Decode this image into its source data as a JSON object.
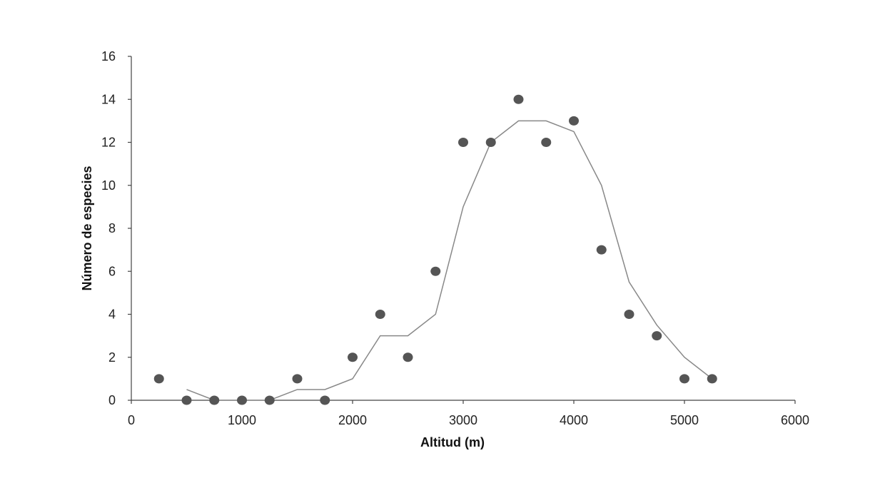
{
  "chart_data": {
    "type": "scatter",
    "title": "",
    "xlabel": "Altitud (m)",
    "ylabel": "Número de especies",
    "xlim": [
      0,
      6000
    ],
    "ylim": [
      0,
      16
    ],
    "xticks": [
      0,
      1000,
      2000,
      3000,
      4000,
      5000,
      6000
    ],
    "yticks": [
      0,
      2,
      4,
      6,
      8,
      10,
      12,
      14,
      16
    ],
    "grid": false,
    "legend": "none",
    "series": [
      {
        "kind": "points",
        "color": "#555555",
        "x": [
          250,
          500,
          750,
          1000,
          1250,
          1500,
          1750,
          2000,
          2250,
          2500,
          2750,
          3000,
          3250,
          3500,
          3750,
          4000,
          4250,
          4500,
          4750,
          5000,
          5250
        ],
        "y": [
          1,
          0,
          0,
          0,
          0,
          1,
          0,
          2,
          4,
          2,
          6,
          12,
          12,
          14,
          12,
          13,
          7,
          4,
          3,
          1,
          1
        ]
      },
      {
        "kind": "line",
        "color": "#888888",
        "x": [
          500,
          750,
          1000,
          1250,
          1500,
          1750,
          2000,
          2250,
          2500,
          2750,
          3000,
          3250,
          3500,
          3750,
          4000,
          4250,
          4500,
          4750,
          5000,
          5250
        ],
        "y": [
          0.5,
          0,
          0,
          0,
          0.5,
          0.5,
          1,
          3,
          3,
          4,
          9,
          12,
          13,
          13,
          12.5,
          10,
          5.5,
          3.5,
          2,
          1
        ]
      }
    ]
  }
}
